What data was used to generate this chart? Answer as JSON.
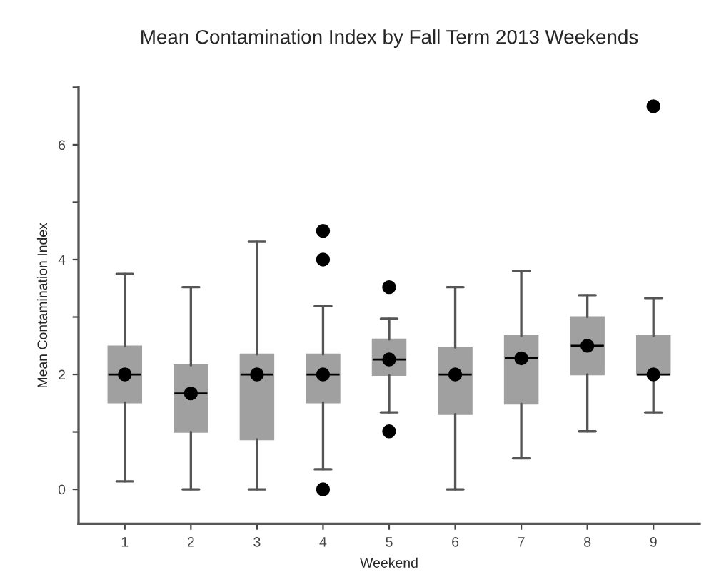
{
  "chart_data": {
    "type": "box",
    "title": "Mean Contamination Index by Fall Term 2013 Weekends",
    "xlabel": "Weekend",
    "ylabel": "Mean Contamination Index",
    "categories": [
      "1",
      "2",
      "3",
      "4",
      "5",
      "6",
      "7",
      "8",
      "9"
    ],
    "color": "#a0a0a0",
    "boxes": [
      {
        "low": 0.14,
        "q1": 1.51,
        "median": 2.0,
        "q3": 2.49,
        "high": 3.75,
        "mean": 2.0
      },
      {
        "low": 0.0,
        "q1": 1.0,
        "median": 1.67,
        "q3": 2.16,
        "high": 3.52,
        "mean": 1.67
      },
      {
        "low": 0.0,
        "q1": 0.87,
        "median": 2.0,
        "q3": 2.35,
        "high": 4.31,
        "mean": 2.0
      },
      {
        "low": 0.35,
        "q1": 1.51,
        "median": 2.0,
        "q3": 2.35,
        "high": 3.19,
        "mean": 2.0,
        "outliers": [
          4.5,
          4.0,
          0.0
        ]
      },
      {
        "low": 1.34,
        "q1": 1.99,
        "median": 2.26,
        "q3": 2.61,
        "high": 2.97,
        "mean": 2.26,
        "outliers": [
          3.52,
          1.01
        ]
      },
      {
        "low": 0.0,
        "q1": 1.31,
        "median": 2.0,
        "q3": 2.47,
        "high": 3.52,
        "mean": 2.0
      },
      {
        "low": 0.54,
        "q1": 1.49,
        "median": 2.28,
        "q3": 2.67,
        "high": 3.8,
        "mean": 2.28
      },
      {
        "low": 1.01,
        "q1": 2.0,
        "median": 2.5,
        "q3": 3.0,
        "high": 3.38,
        "mean": 2.5
      },
      {
        "low": 1.34,
        "q1": 2.0,
        "median": 2.0,
        "q3": 2.67,
        "high": 3.33,
        "mean": 2.0,
        "outliers": [
          6.67
        ]
      }
    ],
    "ylim": [
      -0.6,
      7
    ],
    "yticks": [
      0,
      {
        "value": 1,
        "label": null
      },
      2,
      {
        "value": 3,
        "label": null
      },
      4,
      {
        "value": 5,
        "label": null
      },
      6,
      {
        "value": 7,
        "label": null
      }
    ],
    "grid": false,
    "legend": false
  }
}
